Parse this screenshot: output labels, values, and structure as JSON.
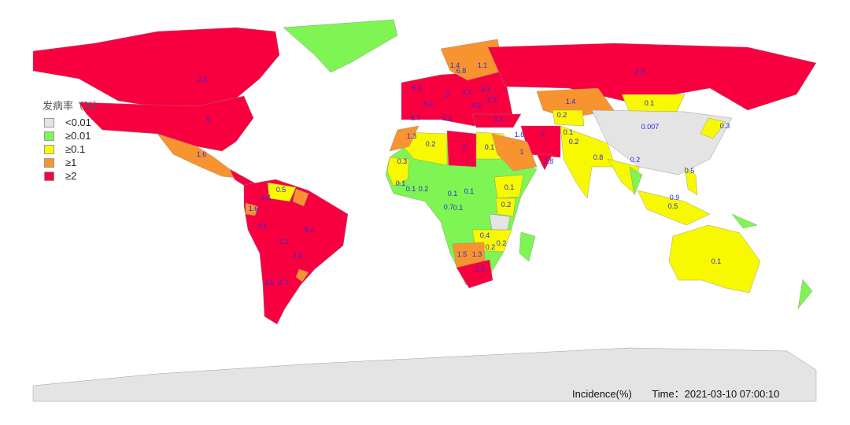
{
  "legend": {
    "title": "发病率（%）",
    "items": [
      {
        "label": "<0.01",
        "color": "#e4e4e4"
      },
      {
        "label": "≥0.01",
        "color": "#7ef552"
      },
      {
        "label": "≥0.1",
        "color": "#f8f800"
      },
      {
        "label": "≥1",
        "color": "#f89430"
      },
      {
        "label": "≥2",
        "color": "#f80040"
      }
    ]
  },
  "footer": {
    "metric": "Incidence(%)",
    "time": "Time：2021-03-10 07:00:10"
  },
  "map_labels": [
    "2.3",
    "9",
    "1.6",
    "0.5",
    "4.4",
    "1.6",
    "4.1",
    "5.2",
    "2.1",
    "2.3",
    "4.5",
    "4.7",
    "1.4",
    "6.8",
    "1.1",
    "6.2",
    "3",
    "4.7",
    "3.1",
    "6.1",
    "3.3",
    "4.3",
    "5.1",
    "6.7",
    "3.3",
    "1.3",
    "0.2",
    "2",
    "0.1",
    "1.8",
    "2",
    "1",
    "2.8",
    "0.3",
    "0.1",
    "0.1",
    "0.2",
    "0.1",
    "0.1",
    "0.1",
    "0.7",
    "0.1",
    "0.2",
    "0.4",
    "0.2",
    "0.2",
    "1.5",
    "1.3",
    "2.5",
    "1.4",
    "0.2",
    "0.1",
    "0.007",
    "0.1",
    "0.2",
    "0.8",
    "0.2",
    "0.3",
    "0.5",
    "0.9",
    "0.5",
    "0.1",
    "2.9"
  ]
}
